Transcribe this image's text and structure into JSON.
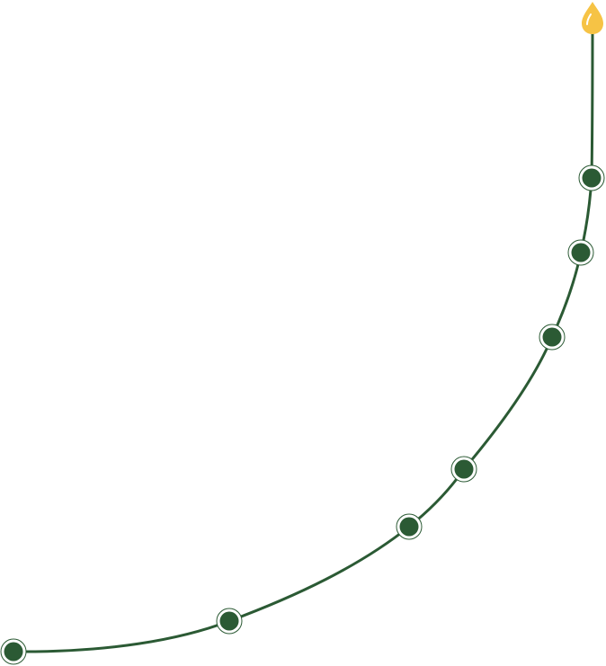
{
  "colors": {
    "path": "#2b5a34",
    "node_fill": "#2b5a34",
    "node_ring": "#2b5a34",
    "node_gap": "#ffffff",
    "drop": "#f6c345",
    "drop_highlight": "#ffffff"
  },
  "icons": {
    "top": "drop-icon"
  },
  "timeline": {
    "node_count": 7
  }
}
